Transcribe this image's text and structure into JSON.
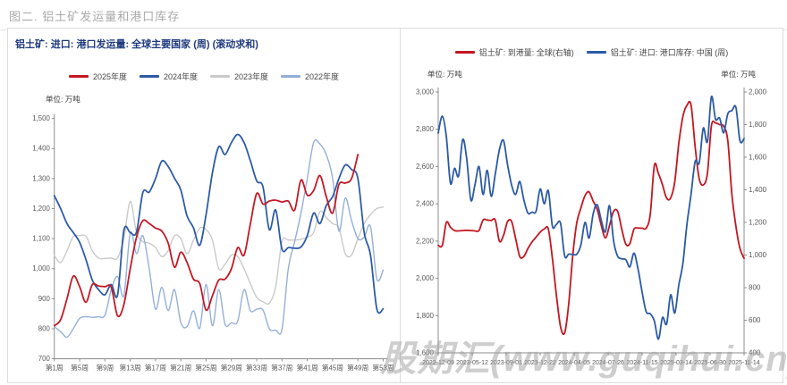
{
  "page_title": "图二. 铝土矿发运量和港口库存",
  "watermark": "股期汇(www.guqihui.cn)",
  "chart_data": [
    {
      "id": "bauxite-shipments-by-week",
      "type": "line",
      "title": "铝土矿: 进口: 港口发运量: 全球主要国家 (周) (滚动求和)",
      "unit": "单位: 万吨",
      "xlabel": "",
      "ylabel": "万吨",
      "ylim": [
        700,
        1500
      ],
      "y_step": 100,
      "x_weeks": 53,
      "x_tick_labels": [
        "第1周",
        "第5周",
        "第9周",
        "第13周",
        "第17周",
        "第21周",
        "第25周",
        "第29周",
        "第33周",
        "第37周",
        "第41周",
        "第45周",
        "第49周",
        "第53周"
      ],
      "grid": false,
      "legend_position": "top",
      "series": [
        {
          "name": "2023年度",
          "color": "#c9c9c9",
          "values": [
            1044,
            1020,
            1060,
            1107,
            1110,
            1108,
            1060,
            1035,
            1034,
            1035,
            1036,
            1100,
            1224,
            1120,
            1090,
            1085,
            1070,
            1040,
            1060,
            1110,
            1100,
            1050,
            1095,
            1135,
            1130,
            1095,
            1000,
            1015,
            1045,
            1040,
            1000,
            950,
            904,
            890,
            885,
            940,
            1090,
            1095,
            1095,
            1098,
            1105,
            1120,
            1190,
            1170,
            1150,
            1135,
            1050,
            1045,
            1100,
            1150,
            1180,
            1200,
            1205
          ]
        },
        {
          "name": "2022年度",
          "color": "#93aed8",
          "values": [
            807,
            790,
            772,
            800,
            834,
            840,
            838,
            840,
            845,
            930,
            974,
            910,
            1119,
            1050,
            1110,
            1000,
            865,
            938,
            860,
            930,
            821,
            807,
            860,
            802,
            947,
            810,
            930,
            815,
            820,
            825,
            930,
            860,
            865,
            862,
            800,
            795,
            798,
            1000,
            1090,
            1185,
            1300,
            1420,
            1415,
            1380,
            1300,
            1125,
            1235,
            1160,
            1100,
            1105,
            1140,
            965,
            995
          ]
        },
        {
          "name": "2024年度",
          "color": "#2b5aa5",
          "values": [
            1243,
            1200,
            1150,
            1120,
            1088,
            1030,
            962,
            930,
            913,
            947,
            912,
            1127,
            1120,
            1122,
            1253,
            1255,
            1300,
            1358,
            1340,
            1301,
            1262,
            1175,
            1136,
            1078,
            1180,
            1320,
            1406,
            1380,
            1420,
            1447,
            1420,
            1359,
            1292,
            1272,
            1130,
            1195,
            1065,
            1070,
            1068,
            1072,
            1110,
            1185,
            1150,
            1210,
            1240,
            1300,
            1345,
            1330,
            1300,
            1120,
            1045,
            865,
            866
          ]
        },
        {
          "name": "2025年度",
          "color": "#c41622",
          "values": [
            810,
            830,
            900,
            975,
            940,
            888,
            947,
            942,
            940,
            938,
            843,
            880,
            1000,
            1105,
            1160,
            1150,
            1135,
            1125,
            1085,
            1005,
            1055,
            1020,
            965,
            950,
            862,
            910,
            962,
            965,
            1000,
            1070,
            1045,
            1150,
            1250,
            1215,
            1225,
            1228,
            1222,
            1225,
            1195,
            1295,
            1245,
            1260,
            1310,
            1240,
            1185,
            1280,
            1285,
            1300,
            1380
          ]
        }
      ],
      "legend_order": [
        3,
        2,
        0,
        1
      ]
    },
    {
      "id": "bauxite-arrivals-and-port-inventory",
      "type": "line",
      "unit_left": "单位: 万吨",
      "unit_right": "单位: 万吨",
      "ylim_left": [
        1600,
        3000
      ],
      "ylim_right": [
        400,
        2000
      ],
      "y_step": 200,
      "x_tick_labels": [
        "2022-12-09",
        "2023-05-12",
        "2023-09-01",
        "2023-12-22",
        "2024-04-05",
        "2024-07-26",
        "2024-11-15",
        "2025-03-14",
        "2025-06-30",
        "2025-11-14"
      ],
      "grid": false,
      "legend_position": "top",
      "series": [
        {
          "name": "铝土矿: 到港量: 全球(右轴)",
          "color": "#c41622",
          "axis": "right",
          "values": [
            1060,
            1060,
            1200,
            1170,
            1150,
            1148,
            1150,
            1152,
            1150,
            1148,
            1150,
            1215,
            1215,
            1212,
            1214,
            1085,
            1120,
            1205,
            1205,
            1100,
            990,
            992,
            1040,
            1080,
            1110,
            1140,
            1160,
            1160,
            978,
            750,
            560,
            523,
            700,
            1000,
            1200,
            1290,
            1365,
            1387,
            1330,
            1279,
            1180,
            1105,
            1180,
            1268,
            1268,
            1160,
            1067,
            1070,
            1159,
            1165,
            1165,
            1165,
            1250,
            1550,
            1500,
            1430,
            1349,
            1350,
            1450,
            1685,
            1850,
            1919,
            1920,
            1664,
            1468,
            1430,
            1500,
            1793,
            1810,
            1800,
            1790,
            1702,
            1376,
            1176,
            1040,
            980
          ]
        },
        {
          "name": "铝土矿: 进口: 港口库存: 中国 (周)",
          "color": "#2b5aa5",
          "axis": "left",
          "values": [
            2780,
            2870,
            2760,
            2510,
            2590,
            2550,
            2745,
            2640,
            2420,
            2500,
            2600,
            2450,
            2580,
            2440,
            2560,
            2690,
            2740,
            2610,
            2500,
            2450,
            2520,
            2420,
            2350,
            2355,
            2360,
            2480,
            2400,
            2470,
            2280,
            2290,
            2295,
            2120,
            2130,
            2128,
            2130,
            2180,
            2300,
            2216,
            2347,
            2395,
            2310,
            2250,
            2390,
            2201,
            2119,
            2105,
            2100,
            2061,
            2135,
            2050,
            1926,
            1820,
            1810,
            1770,
            1674,
            1790,
            1755,
            1911,
            1814,
            1964,
            2080,
            2293,
            2450,
            2627,
            2620,
            2806,
            2733,
            2975,
            2854,
            2860,
            2781,
            2883,
            2900,
            2917,
            2738,
            2750
          ]
        }
      ],
      "legend_order": [
        0,
        1
      ]
    }
  ]
}
